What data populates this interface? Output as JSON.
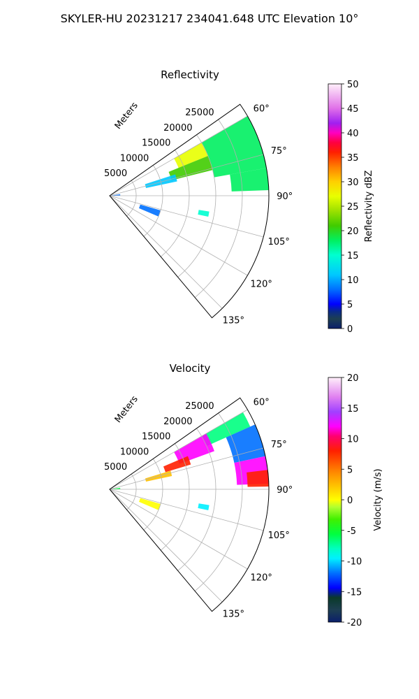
{
  "figure_title": "SKYLER-HU  20231217  234041.648 UTC Elevation 10°",
  "panels": [
    {
      "title": "Reflectivity",
      "range_axis_label": "Meters",
      "range_ticks": [
        "5000",
        "10000",
        "15000",
        "20000",
        "25000"
      ],
      "azimuth_ticks": [
        "60°",
        "75°",
        "90°",
        "105°",
        "120°",
        "135°"
      ],
      "colorbar": {
        "label": "Reflectivity dBZ",
        "ticks": [
          "0",
          "5",
          "10",
          "15",
          "20",
          "25",
          "30",
          "35",
          "40",
          "45",
          "50"
        ],
        "min": 0,
        "max": 50
      }
    },
    {
      "title": "Velocity",
      "range_axis_label": "Meters",
      "range_ticks": [
        "5000",
        "10000",
        "15000",
        "20000",
        "25000"
      ],
      "azimuth_ticks": [
        "60°",
        "75°",
        "90°",
        "105°",
        "120°",
        "135°"
      ],
      "colorbar": {
        "label": "Velocity (m/s)",
        "ticks": [
          "-20",
          "-15",
          "-10",
          "-5",
          "0",
          "5",
          "10",
          "15",
          "20"
        ],
        "min": -20,
        "max": 20
      }
    }
  ],
  "chart_data": [
    {
      "type": "heatmap",
      "projection": "polar sector",
      "title": "Reflectivity",
      "ylabel": "Meters",
      "azimuth_range": [
        55,
        140
      ],
      "range_lim": [
        0,
        30000
      ],
      "grid": true,
      "colorbar_range": [
        0,
        50
      ],
      "echo_regions": [
        {
          "az_from": 60,
          "az_to": 80,
          "range_from": 20000,
          "range_to": 30000,
          "value": 18
        },
        {
          "az_from": 80,
          "az_to": 88,
          "range_from": 23000,
          "range_to": 30000,
          "value": 17
        },
        {
          "az_from": 60,
          "az_to": 68,
          "range_from": 14000,
          "range_to": 20000,
          "value": 27
        },
        {
          "az_from": 68,
          "az_to": 76,
          "range_from": 12000,
          "range_to": 20000,
          "value": 21
        },
        {
          "az_from": 72,
          "az_to": 78,
          "range_from": 7000,
          "range_to": 13000,
          "value": 13
        },
        {
          "az_from": 82,
          "az_to": 88,
          "range_from": 0,
          "range_to": 2000,
          "value": 10
        },
        {
          "az_from": 106,
          "az_to": 113,
          "range_from": 6000,
          "range_to": 10000,
          "value": 9
        },
        {
          "az_from": 99,
          "az_to": 102,
          "range_from": 17000,
          "range_to": 19000,
          "value": 16
        }
      ]
    },
    {
      "type": "heatmap",
      "projection": "polar sector",
      "title": "Velocity",
      "ylabel": "Meters",
      "azimuth_range": [
        55,
        140
      ],
      "range_lim": [
        0,
        30000
      ],
      "grid": true,
      "colorbar_range": [
        -20,
        20
      ],
      "echo_regions": [
        {
          "az_from": 60,
          "az_to": 66,
          "range_from": 20000,
          "range_to": 29000,
          "value": -7
        },
        {
          "az_from": 66,
          "az_to": 78,
          "range_from": 24000,
          "range_to": 30000,
          "value": -12
        },
        {
          "az_from": 78,
          "az_to": 88,
          "range_from": 24000,
          "range_to": 30000,
          "value": 13
        },
        {
          "az_from": 83,
          "az_to": 89,
          "range_from": 26000,
          "range_to": 30000,
          "value": 9
        },
        {
          "az_from": 60,
          "az_to": 70,
          "range_from": 14000,
          "range_to": 21000,
          "value": 14
        },
        {
          "az_from": 67,
          "az_to": 73,
          "range_from": 11000,
          "range_to": 16000,
          "value": 9
        },
        {
          "az_from": 73,
          "az_to": 78,
          "range_from": 7000,
          "range_to": 12000,
          "value": 3
        },
        {
          "az_from": 82,
          "az_to": 88,
          "range_from": 0,
          "range_to": 2000,
          "value": -4
        },
        {
          "az_from": 106,
          "az_to": 113,
          "range_from": 6000,
          "range_to": 10000,
          "value": 2
        },
        {
          "az_from": 99,
          "az_to": 102,
          "range_from": 17000,
          "range_to": 19000,
          "value": -9
        }
      ]
    }
  ]
}
